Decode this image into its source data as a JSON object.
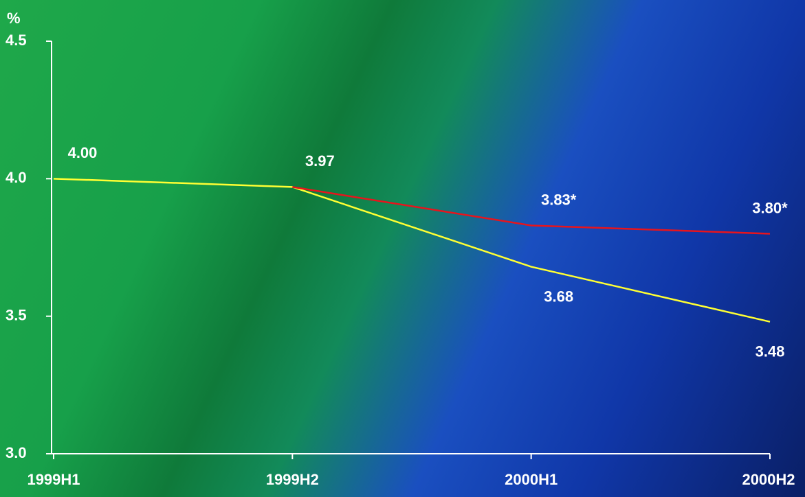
{
  "chart_data": {
    "type": "line",
    "y_label": "%",
    "categories": [
      "1999H1",
      "1999H2",
      "2000H1",
      "2000H2"
    ],
    "series": [
      {
        "color": "#ffff33",
        "values": [
          4.0,
          3.97,
          3.68,
          3.48
        ],
        "value_labels": [
          "4.00",
          "3.97",
          "3.68",
          "3.48"
        ]
      },
      {
        "color": "#e8141c",
        "values": [
          null,
          3.97,
          3.83,
          3.8
        ],
        "value_labels": [
          null,
          null,
          "3.83*",
          "3.80*"
        ]
      }
    ],
    "ylim": [
      3.0,
      4.5
    ],
    "yticks": [
      {
        "value": 3.0,
        "label": "3.0"
      },
      3.5,
      {
        "value": 4.0,
        "label": "4.0"
      },
      4.5
    ]
  }
}
